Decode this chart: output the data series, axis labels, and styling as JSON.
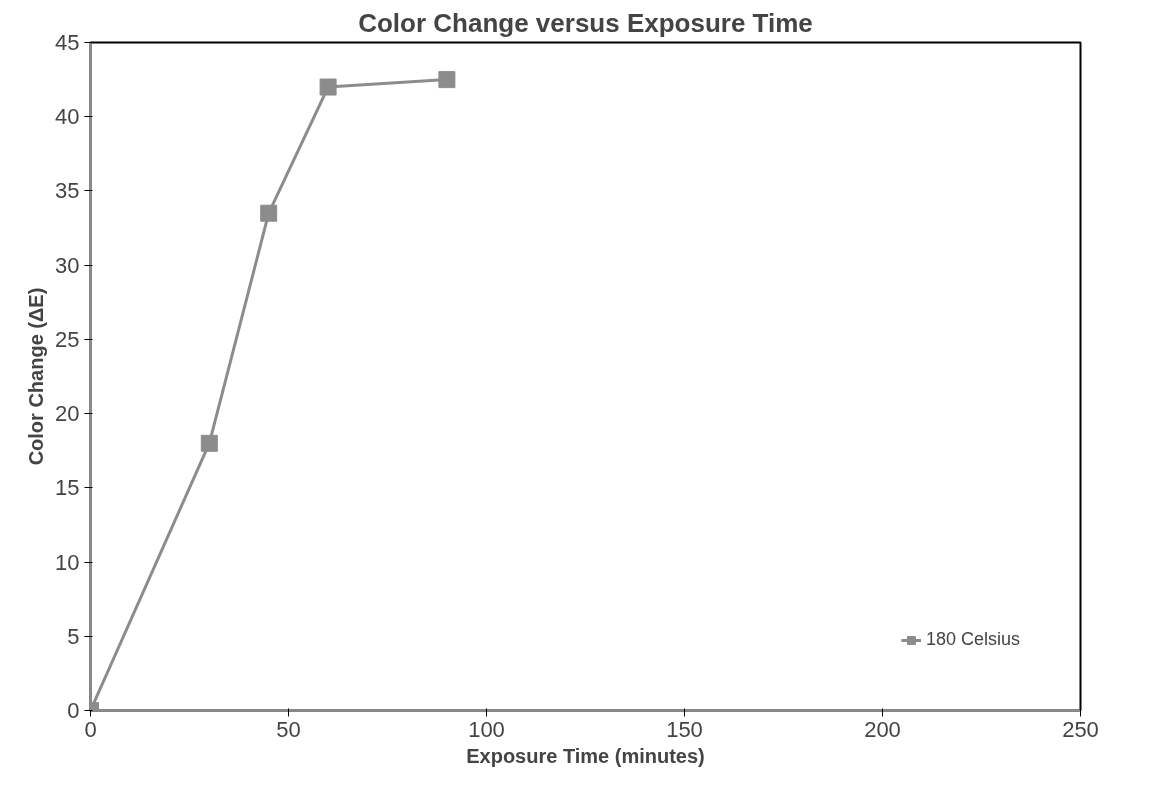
{
  "chart_data": {
    "type": "line",
    "title": "Color Change versus Exposure Time",
    "xlabel": "Exposure Time (minutes)",
    "ylabel": "Color Change (ΔE)",
    "x": [
      0,
      30,
      45,
      60,
      90
    ],
    "series": [
      {
        "name": "180 Celsius",
        "color": "#8c8c8c",
        "values": [
          0,
          18,
          33.5,
          42,
          42.5
        ]
      }
    ],
    "xlim": [
      0,
      250
    ],
    "xticks": [
      0,
      50,
      100,
      150,
      200,
      250
    ],
    "ylim": [
      0,
      45
    ],
    "yticks": [
      0,
      5,
      10,
      15,
      20,
      25,
      30,
      35,
      40,
      45
    ],
    "grid": false,
    "legend": "bottom right",
    "marker": "square",
    "line_style": "solid"
  }
}
